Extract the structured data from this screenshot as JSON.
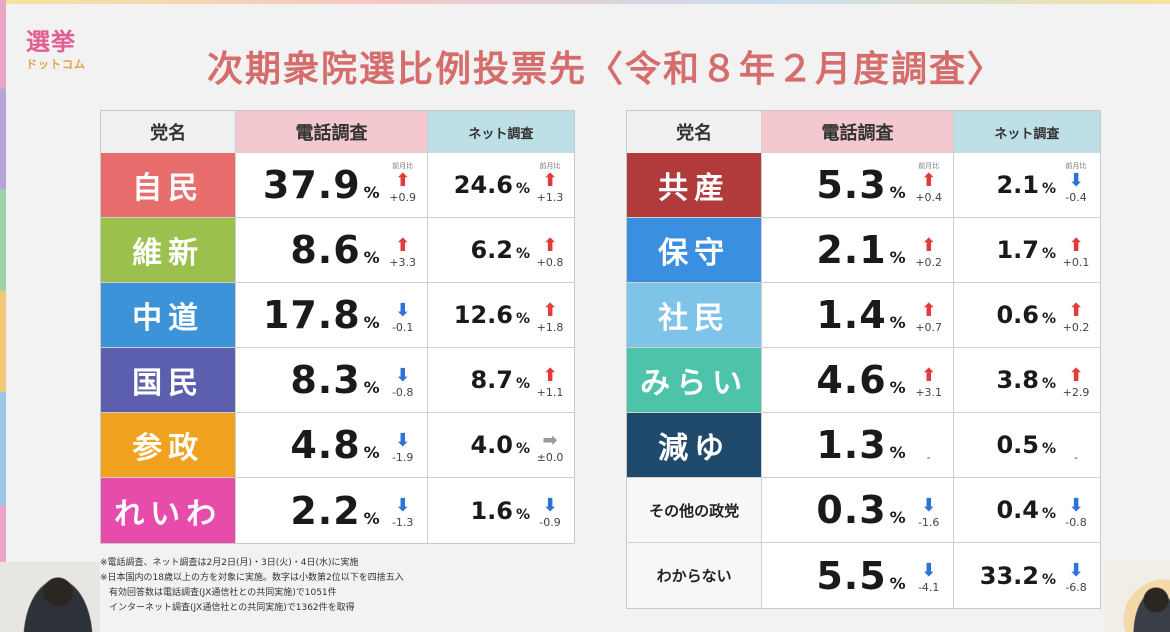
{
  "logo": {
    "line1": "選挙",
    "line2": "ドットコム"
  },
  "title": "次期衆院選比例投票先〈令和８年２月度調査〉",
  "headers": {
    "party": "党名",
    "phone": "電話調査",
    "net": "ネット調査"
  },
  "change_label": "前月比",
  "percent": "%",
  "left_rows": [
    {
      "party": "自民",
      "color": "#e86e6e",
      "phone": "37.9",
      "phone_dir": "up",
      "phone_chg": "+0.9",
      "net": "24.6",
      "net_dir": "up",
      "net_chg": "+1.3"
    },
    {
      "party": "維新",
      "color": "#9bc04d",
      "phone": "8.6",
      "phone_dir": "up",
      "phone_chg": "+3.3",
      "net": "6.2",
      "net_dir": "up",
      "net_chg": "+0.8"
    },
    {
      "party": "中道",
      "color": "#3d93d8",
      "phone": "17.8",
      "phone_dir": "down",
      "phone_chg": "-0.1",
      "net": "12.6",
      "net_dir": "up",
      "net_chg": "+1.8"
    },
    {
      "party": "国民",
      "color": "#5b5fae",
      "phone": "8.3",
      "phone_dir": "down",
      "phone_chg": "-0.8",
      "net": "8.7",
      "net_dir": "up",
      "net_chg": "+1.1"
    },
    {
      "party": "参政",
      "color": "#f0a21e",
      "phone": "4.8",
      "phone_dir": "down",
      "phone_chg": "-1.9",
      "net": "4.0",
      "net_dir": "flat",
      "net_chg": "±0.0"
    },
    {
      "party": "れいわ",
      "color": "#e84cab",
      "phone": "2.2",
      "phone_dir": "down",
      "phone_chg": "-1.3",
      "net": "1.6",
      "net_dir": "down",
      "net_chg": "-0.9"
    }
  ],
  "right_rows": [
    {
      "party": "共産",
      "color": "#b13a3a",
      "phone": "5.3",
      "phone_dir": "up",
      "phone_chg": "+0.4",
      "net": "2.1",
      "net_dir": "down",
      "net_chg": "-0.4"
    },
    {
      "party": "保守",
      "color": "#3b8fe0",
      "phone": "2.1",
      "phone_dir": "up",
      "phone_chg": "+0.2",
      "net": "1.7",
      "net_dir": "up",
      "net_chg": "+0.1"
    },
    {
      "party": "社民",
      "color": "#7ec4e8",
      "phone": "1.4",
      "phone_dir": "up",
      "phone_chg": "+0.7",
      "net": "0.6",
      "net_dir": "up",
      "net_chg": "+0.2"
    },
    {
      "party": "みらい",
      "color": "#4dc3a9",
      "phone": "4.6",
      "phone_dir": "up",
      "phone_chg": "+3.1",
      "net": "3.8",
      "net_dir": "up",
      "net_chg": "+2.9"
    },
    {
      "party": "減ゆ",
      "color": "#1f4a6b",
      "phone": "1.3",
      "phone_dir": "none",
      "phone_chg": "-",
      "net": "0.5",
      "net_dir": "none",
      "net_chg": "-"
    },
    {
      "party": "その他の政党",
      "color": "",
      "phone": "0.3",
      "phone_dir": "down",
      "phone_chg": "-1.6",
      "net": "0.4",
      "net_dir": "down",
      "net_chg": "-0.8"
    },
    {
      "party": "わからない",
      "color": "",
      "phone": "5.5",
      "phone_dir": "down",
      "phone_chg": "-4.1",
      "net": "33.2",
      "net_dir": "down",
      "net_chg": "-6.8"
    }
  ],
  "notes": [
    "※電話調査、ネット調査は2月2日(月)・3日(火)・4日(水)に実施",
    "※日本国内の18歳以上の方を対象に実施。数字は小数第2位以下を四捨五入",
    "　有効回答数は電話調査(JX通信社との共同実施)で1051件",
    "　インターネット調査(JX通信社との共同実施)で1362件を取得"
  ]
}
